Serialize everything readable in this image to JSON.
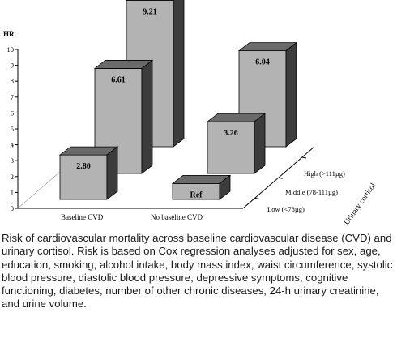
{
  "chart_data": {
    "type": "bar",
    "subtype": "3d-grouped",
    "ylabel": "HR",
    "ylim": [
      0,
      10
    ],
    "yticks": [
      "0",
      "1",
      "2",
      "3",
      "4",
      "5",
      "6",
      "7",
      "8",
      "9",
      "10"
    ],
    "categories": [
      "Baseline CVD",
      "No baseline CVD"
    ],
    "depth_axis_title": "Urinary cortisol",
    "series": [
      {
        "name": "Low (<78µg)",
        "values": [
          2.8,
          1.0
        ],
        "labels": [
          "2.80",
          "Ref"
        ]
      },
      {
        "name": "Middle (78-111µg)",
        "values": [
          6.61,
          3.26
        ],
        "labels": [
          "6.61",
          "3.26"
        ]
      },
      {
        "name": "High (>111µg)",
        "values": [
          9.21,
          6.04
        ],
        "labels": [
          "9.21",
          "6.04"
        ]
      }
    ],
    "colors": {
      "face": "#b3b3b3",
      "top": "#6a6a6a",
      "side": "#3c3c3c",
      "axis": "#000000"
    }
  },
  "caption": "Risk of cardiovascular mortality across baseline cardiovascular disease (CVD) and urinary cortisol. Risk is based on Cox regression analyses adjusted for sex, age, education, smoking, alcohol intake, body mass index, waist circumference, systolic blood pressure, diastolic blood pressure, depressive symptoms, cognitive functioning, diabetes, number of other chronic diseases, 24-h urinary creatinine, and urine volume."
}
